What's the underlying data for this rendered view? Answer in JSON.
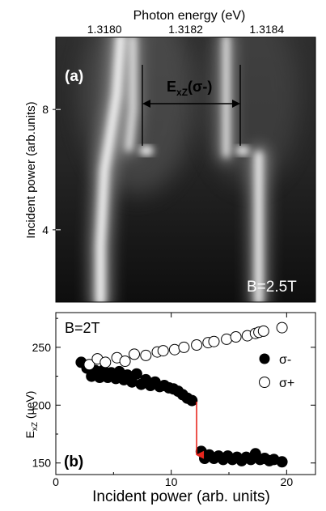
{
  "chart_data": [
    {
      "panel_label": "(a)",
      "type": "heatmap",
      "xlabel_top": "Photon energy (eV)",
      "ylabel": "Incident power (arb.units)",
      "x_ticks": [
        "1.3180",
        "1.3182",
        "1.3184"
      ],
      "x_tick_values": [
        1.318,
        1.3182,
        1.3184
      ],
      "xlim": [
        1.31788,
        1.31852
      ],
      "y_ticks": [
        "4",
        "8"
      ],
      "y_tick_values": [
        4,
        8
      ],
      "ylim": [
        1.6,
        10.4
      ],
      "annotation": {
        "main": "E",
        "sub": "xZ",
        "tail": "(σ-)"
      },
      "field_label": "B=2.5T",
      "bright_lines": [
        {
          "energy": [
            1.31804,
            1.31803,
            1.31801,
            1.318,
            1.31799,
            1.31799
          ],
          "power": [
            10.4,
            8.5,
            6.8,
            6.0,
            3.5,
            1.6
          ]
        },
        {
          "energy": [
            1.31807,
            1.31807,
            1.31806
          ],
          "power": [
            10.4,
            8.0,
            6.7
          ]
        },
        {
          "energy": [
            1.3183,
            1.3183,
            1.3183
          ],
          "power": [
            10.4,
            8.0,
            6.5
          ]
        },
        {
          "energy": [
            1.31838,
            1.31838,
            1.31838
          ],
          "power": [
            6.5,
            4.0,
            1.6
          ]
        }
      ]
    },
    {
      "panel_label": "(b)",
      "type": "scatter",
      "xlabel": "Incident power (arb. units)",
      "ylabel_main": "E",
      "ylabel_sub": "xZ",
      "ylabel_tail": " (μeV)",
      "xlim": [
        0,
        22.5
      ],
      "ylim": [
        140,
        280
      ],
      "x_ticks": [
        0,
        10,
        20
      ],
      "y_ticks": [
        150,
        200,
        250
      ],
      "field_label": "B=2T",
      "legend_position": "right",
      "series": [
        {
          "name": "σ-",
          "marker": "filled-circle",
          "points": [
            [
              2.2,
              237
            ],
            [
              2.7,
              232
            ],
            [
              3.1,
              225
            ],
            [
              3.4,
              230
            ],
            [
              3.8,
              224
            ],
            [
              4.1,
              230
            ],
            [
              4.5,
              224
            ],
            [
              4.8,
              228
            ],
            [
              5.2,
              223
            ],
            [
              5.5,
              229
            ],
            [
              5.9,
              222
            ],
            [
              6.2,
              226
            ],
            [
              6.6,
              220
            ],
            [
              7.0,
              227
            ],
            [
              7.4,
              218
            ],
            [
              7.8,
              222
            ],
            [
              8.2,
              217
            ],
            [
              8.6,
              220
            ],
            [
              9.0,
              216
            ],
            [
              9.4,
              217
            ],
            [
              9.8,
              215
            ],
            [
              10.2,
              214
            ],
            [
              10.6,
              212
            ],
            [
              11.0,
              209
            ],
            [
              11.4,
              206
            ],
            [
              11.8,
              204
            ],
            [
              12.6,
              160
            ],
            [
              12.9,
              154
            ],
            [
              13.3,
              157
            ],
            [
              13.7,
              154
            ],
            [
              14.1,
              156
            ],
            [
              14.5,
              153
            ],
            [
              14.9,
              156
            ],
            [
              15.3,
              153
            ],
            [
              15.7,
              155
            ],
            [
              16.1,
              152
            ],
            [
              16.5,
              155
            ],
            [
              16.9,
              153
            ],
            [
              17.3,
              158
            ],
            [
              17.7,
              153
            ],
            [
              18.1,
              154
            ],
            [
              18.5,
              152
            ],
            [
              18.9,
              153
            ],
            [
              19.6,
              151
            ]
          ]
        },
        {
          "name": "σ+",
          "marker": "open-circle",
          "points": [
            [
              2.9,
              235
            ],
            [
              3.6,
              240
            ],
            [
              4.3,
              237
            ],
            [
              5.3,
              241
            ],
            [
              6.0,
              238
            ],
            [
              6.8,
              244
            ],
            [
              7.8,
              243
            ],
            [
              8.8,
              246
            ],
            [
              9.3,
              247
            ],
            [
              10.3,
              248
            ],
            [
              11.1,
              250
            ],
            [
              12.2,
              252
            ],
            [
              13.2,
              254
            ],
            [
              13.7,
              255
            ],
            [
              14.8,
              257
            ],
            [
              15.6,
              259
            ],
            [
              16.6,
              260
            ],
            [
              17.3,
              262
            ],
            [
              17.6,
              263
            ],
            [
              18.0,
              264
            ],
            [
              19.6,
              267
            ]
          ]
        }
      ],
      "arrow": {
        "x": 12.2,
        "y_from": 203,
        "y_to": 157,
        "color": "#e8261e"
      }
    }
  ]
}
